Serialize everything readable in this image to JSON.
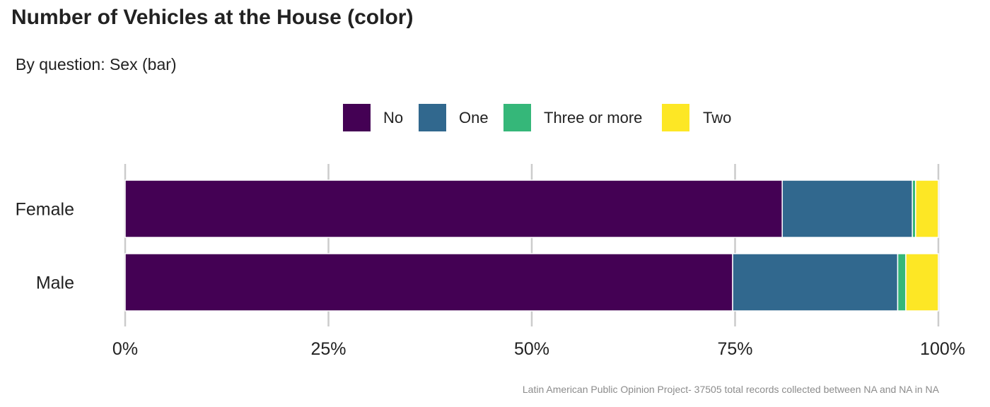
{
  "chart_data": {
    "type": "bar",
    "orientation": "horizontal",
    "stacked": true,
    "normalized": true,
    "title": "Number of Vehicles at the House (color)",
    "subtitle": "By question: Sex (bar)",
    "caption": "Latin American Public Opinion Project- 37505 total records collected between NA and NA in  NA",
    "categories": [
      "Female",
      "Male"
    ],
    "series": [
      {
        "name": "No",
        "color": "#440154",
        "values": [
          0.808,
          0.747
        ]
      },
      {
        "name": "One",
        "color": "#31688e",
        "values": [
          0.16,
          0.203
        ]
      },
      {
        "name": "Three or more",
        "color": "#35b779",
        "values": [
          0.004,
          0.01
        ]
      },
      {
        "name": "Two",
        "color": "#fde725",
        "values": [
          0.028,
          0.04
        ]
      }
    ],
    "xlim": [
      0,
      1
    ],
    "xticks": [
      0,
      0.25,
      0.5,
      0.75,
      1.0
    ],
    "xtick_labels": [
      "0%",
      "25%",
      "50%",
      "75%",
      "100%"
    ],
    "xlabel": "",
    "ylabel": "",
    "legend_position": "top",
    "grid": "vertical-major"
  }
}
